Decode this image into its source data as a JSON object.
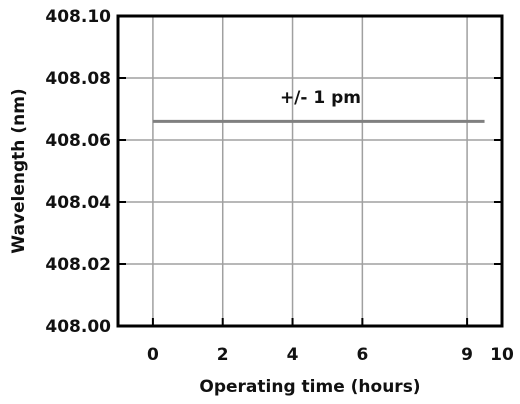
{
  "chart_data": {
    "type": "line",
    "title": "",
    "xlabel": "Operating time (hours)",
    "ylabel": "Wavelength (nm)",
    "xlim": [
      -1,
      10
    ],
    "ylim": [
      408.0,
      408.1
    ],
    "x_ticks": [
      0,
      2,
      4,
      6,
      9,
      10
    ],
    "x_tick_labels": [
      "0",
      "2",
      "4",
      "6",
      "9",
      "10"
    ],
    "y_ticks": [
      408.0,
      408.02,
      408.04,
      408.06,
      408.08,
      408.1
    ],
    "y_tick_labels": [
      "408.00",
      "408.02",
      "408.04",
      "408.06",
      "408.08",
      "408.10"
    ],
    "grid": true,
    "series": [
      {
        "x": [
          0,
          9.5
        ],
        "y": [
          408.066,
          408.066
        ],
        "color": "#808080"
      }
    ],
    "annotations": [
      {
        "text": "+/- 1 pm",
        "x": 4.8,
        "y": 408.072
      }
    ]
  }
}
